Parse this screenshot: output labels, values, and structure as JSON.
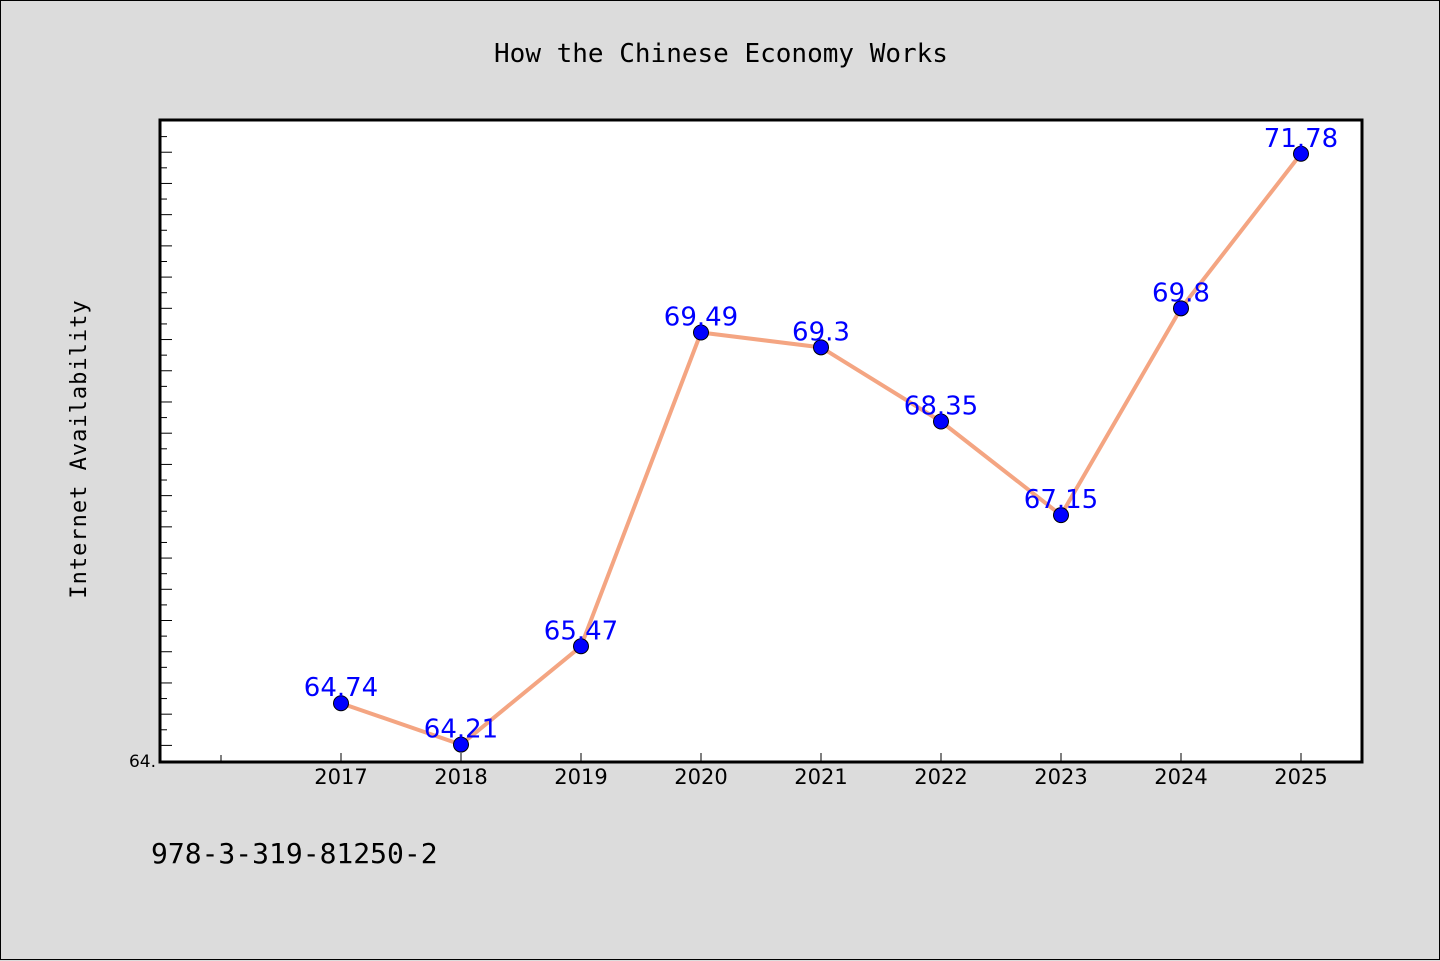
{
  "chart_data": {
    "type": "line",
    "title": "How the Chinese Economy Works",
    "xlabel": "",
    "ylabel": "Internet Availability",
    "categories": [
      "2017",
      "2018",
      "2019",
      "2020",
      "2021",
      "2022",
      "2023",
      "2024",
      "2025"
    ],
    "x_tick_positions": [
      1,
      2,
      3,
      4,
      5,
      6,
      7,
      8,
      9
    ],
    "xlim": [
      -0.5,
      9.5
    ],
    "ylim": [
      64.0,
      72.2
    ],
    "y_tick_label": "64.",
    "grid": false,
    "series": [
      {
        "values": [
          64.74,
          64.21,
          65.47,
          69.49,
          69.3,
          68.35,
          67.15,
          69.8,
          71.78
        ],
        "labels": [
          "64.74",
          "64.21",
          "65.47",
          "69.49",
          "69.3",
          "68.35",
          "67.15",
          "69.8",
          "71.78"
        ],
        "color": "#f4a582",
        "marker_color": "#0000ff"
      }
    ]
  },
  "footer": {
    "isbn": "978-3-319-81250-2"
  }
}
